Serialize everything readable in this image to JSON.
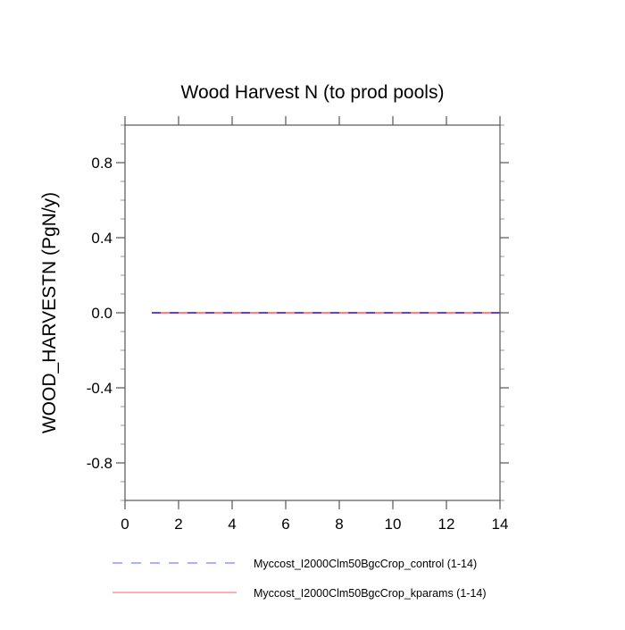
{
  "chart_data": {
    "type": "line",
    "title": "Wood Harvest N (to prod pools)",
    "xlabel": "",
    "ylabel": "WOOD_HARVESTN  (PgN/y)",
    "xlim": [
      0,
      14
    ],
    "ylim": [
      -1,
      1
    ],
    "xticks": [
      "0",
      "2",
      "4",
      "6",
      "8",
      "10",
      "12",
      "14"
    ],
    "xtick_values": [
      0,
      2,
      4,
      6,
      8,
      10,
      12,
      14
    ],
    "yticks": [
      "-0.8",
      "-0.4",
      "0.0",
      "0.4",
      "0.8"
    ],
    "ytick_values": [
      -0.8,
      -0.4,
      0.0,
      0.4,
      0.8
    ],
    "grid": false,
    "legend_placement": "bottom",
    "x": [
      1,
      2,
      3,
      4,
      5,
      6,
      7,
      8,
      9,
      10,
      11,
      12,
      13,
      14
    ],
    "series": [
      {
        "name": "Myccost_I2000Clm50BgcCrop_control (1-14)",
        "color": "#7f7fff",
        "dash": "dashed",
        "values": [
          0,
          0,
          0,
          0,
          0,
          0,
          0,
          0,
          0,
          0,
          0,
          0,
          0,
          0
        ]
      },
      {
        "name": "Myccost_I2000Clm50BgcCrop_kparams (1-14)",
        "color": "#ff7f7f",
        "dash": "solid",
        "values": [
          0,
          0,
          0,
          0,
          0,
          0,
          0,
          0,
          0,
          0,
          0,
          0,
          0,
          0
        ]
      }
    ]
  }
}
